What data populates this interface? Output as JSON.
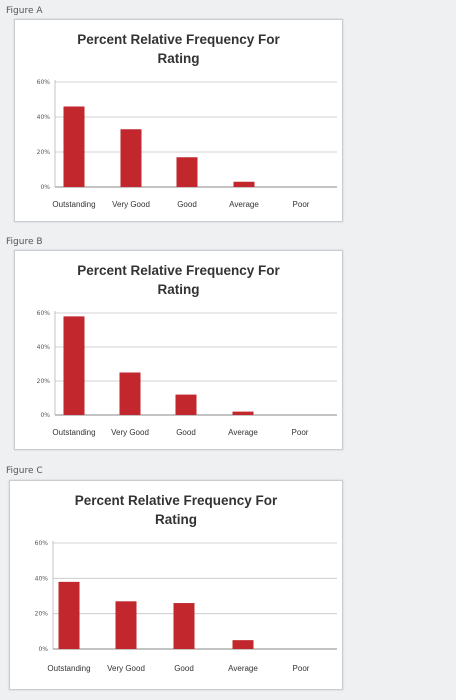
{
  "charts": [
    {
      "figure_label": "Figure A",
      "chart_data": {
        "type": "bar",
        "title": "Percent Relative Frequency For\nRating",
        "categories": [
          "Outstanding",
          "Very Good",
          "Good",
          "Average",
          "Poor"
        ],
        "values": [
          46,
          33,
          17,
          3,
          0
        ],
        "yticks": [
          "0%",
          "20%",
          "40%",
          "60%"
        ],
        "ylim": [
          0,
          60
        ],
        "grid": true,
        "bar_color": "#c1272d"
      }
    },
    {
      "figure_label": "Figure B",
      "chart_data": {
        "type": "bar",
        "title": "Percent Relative Frequency For\nRating",
        "categories": [
          "Outstanding",
          "Very Good",
          "Good",
          "Average",
          "Poor"
        ],
        "values": [
          58,
          25,
          12,
          2,
          0
        ],
        "yticks": [
          "0%",
          "20%",
          "40%",
          "60%"
        ],
        "ylim": [
          0,
          60
        ],
        "grid": true,
        "bar_color": "#c1272d"
      }
    },
    {
      "figure_label": "Figure C",
      "chart_data": {
        "type": "bar",
        "title": "Percent Relative Frequency For\nRating",
        "categories": [
          "Outstanding",
          "Very Good",
          "Good",
          "Average",
          "Poor"
        ],
        "values": [
          38,
          27,
          26,
          5,
          0
        ],
        "yticks": [
          "0%",
          "20%",
          "40%",
          "60%"
        ],
        "ylim": [
          0,
          60
        ],
        "grid": true,
        "bar_color": "#c1272d"
      }
    }
  ]
}
